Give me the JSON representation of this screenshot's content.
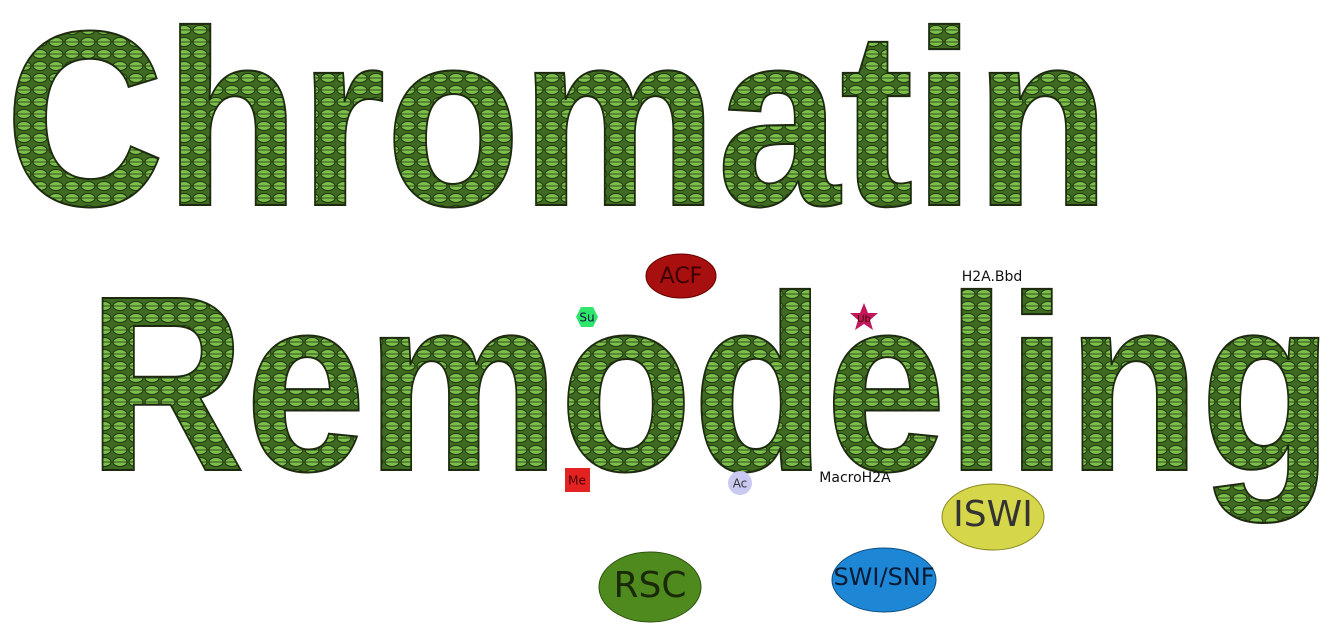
{
  "title": {
    "line1": "Chromatin",
    "line2": "Remodeling"
  },
  "labels": {
    "acf": "ACF",
    "su": "Su",
    "ub": "Ub",
    "h2a_bbd": "H2A.Bbd",
    "me": "Me",
    "ac": "Ac",
    "macroh2a": "MacroH2A",
    "iswi": "ISWI",
    "rsc": "RSC",
    "swi_snf": "SWI/SNF"
  }
}
